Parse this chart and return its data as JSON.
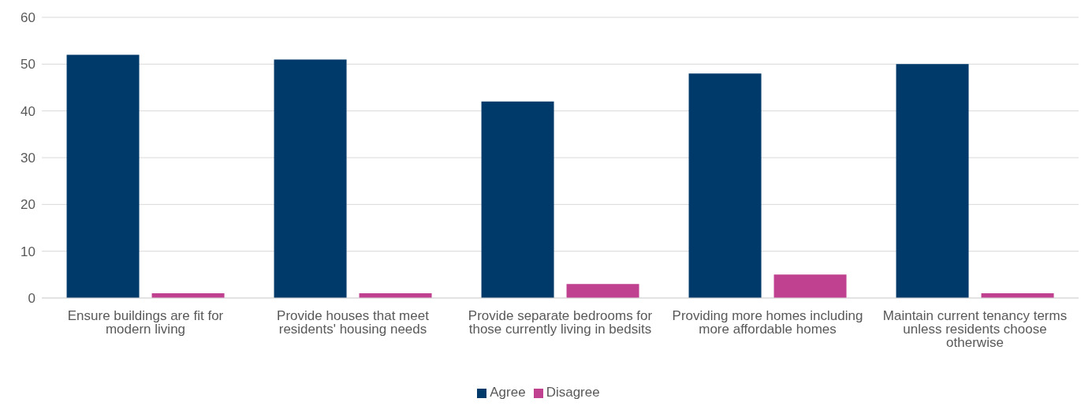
{
  "chart_data": {
    "type": "bar",
    "categories": [
      "Ensure buildings are fit for modern living",
      "Provide houses that meet residents' housing needs",
      "Provide separate bedrooms for those currently living in bedsits",
      "Providing more homes including more affordable homes",
      "Maintain current tenancy terms unless residents choose otherwise"
    ],
    "series": [
      {
        "name": "Agree",
        "color": "#003a6b",
        "values": [
          52,
          51,
          42,
          48,
          50
        ]
      },
      {
        "name": "Disagree",
        "color": "#c0418f",
        "values": [
          1,
          1,
          3,
          5,
          1
        ]
      }
    ],
    "ylim": [
      0,
      60
    ],
    "yticks": [
      0,
      10,
      20,
      30,
      40,
      50,
      60
    ],
    "grid": "y",
    "legend": "bottom"
  }
}
